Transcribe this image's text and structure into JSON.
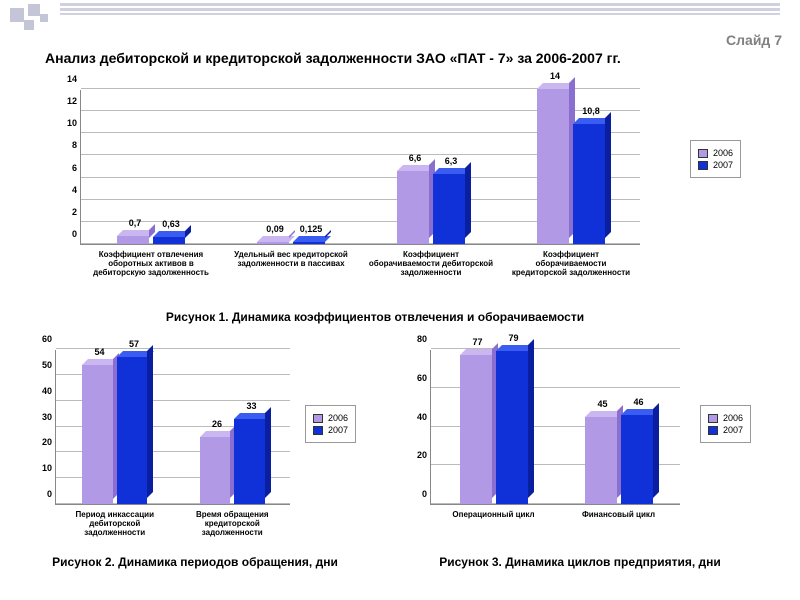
{
  "slide_number": "Слайд 7",
  "title": "Анализ дебиторской и кредиторской задолженности ЗАО «ПАТ - 7» за 2006-2007 гг.",
  "colors": {
    "series_2006_front": "#b299e6",
    "series_2006_side": "#8a6fd1",
    "series_2006_top": "#cab6f0",
    "series_2007_front": "#1030d8",
    "series_2007_side": "#0a1fa0",
    "series_2007_top": "#3a5cf0",
    "grid": "#bbbbbb",
    "bg": "#ffffff"
  },
  "legend": {
    "s1": "2006",
    "s2": "2007"
  },
  "chart1": {
    "caption": "Рисунок 1. Динамика коэффициентов отвлечения и оборачиваемости",
    "ylim": [
      0,
      14
    ],
    "ytick_step": 2,
    "categories": [
      "Коэффициент отвлечения оборотных активов в дебиторскую задолженность",
      "Удельный вес кредиторской задолженности в пассивах",
      "Коэффициент оборачиваемости дебиторской задолженности",
      "Коэффициент оборачиваемости кредиторской задолженности"
    ],
    "values_2006": [
      0.7,
      0.09,
      6.6,
      14
    ],
    "values_2007": [
      0.63,
      0.125,
      6.3,
      10.8
    ],
    "labels_2006": [
      "0,7",
      "0,09",
      "6,6",
      "14"
    ],
    "labels_2007": [
      "0,63",
      "0,125",
      "6,3",
      "10,8"
    ]
  },
  "chart2": {
    "caption": "Рисунок 2. Динамика периодов обращения, дни",
    "ylim": [
      0,
      60
    ],
    "ytick_step": 10,
    "categories": [
      "Период инкассации дебиторской задолженности",
      "Время обращения кредиторской задолженности"
    ],
    "values_2006": [
      54,
      26
    ],
    "values_2007": [
      57,
      33
    ],
    "labels_2006": [
      "54",
      "26"
    ],
    "labels_2007": [
      "57",
      "33"
    ]
  },
  "chart3": {
    "caption": "Рисунок 3. Динамика циклов предприятия, дни",
    "ylim": [
      0,
      80
    ],
    "ytick_step": 20,
    "categories": [
      "Операционный цикл",
      "Финансовый цикл"
    ],
    "values_2006": [
      77,
      45
    ],
    "values_2007": [
      79,
      46
    ],
    "labels_2006": [
      "77",
      "45"
    ],
    "labels_2007": [
      "79",
      "46"
    ]
  }
}
